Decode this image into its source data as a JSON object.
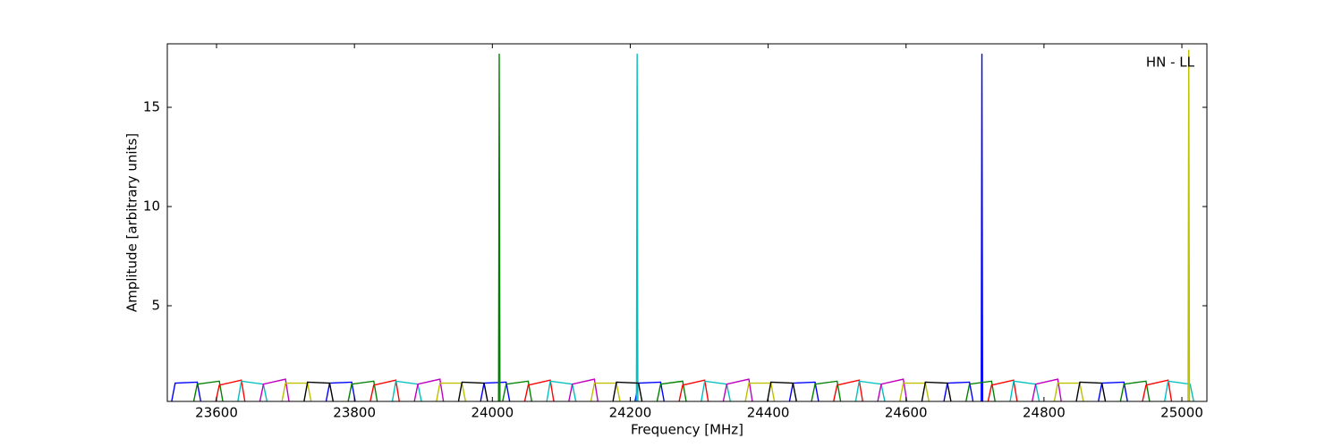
{
  "chart_data": {
    "type": "line",
    "annotation": "HN - LL",
    "xlabel": "Frequency [MHz]",
    "ylabel": "Amplitude [arbitrary units]",
    "xlim": [
      23528.6,
      25036.3
    ],
    "ylim": [
      0.18,
      18.2
    ],
    "xticks": [
      23600,
      23800,
      24000,
      24200,
      24400,
      24600,
      24800,
      25000
    ],
    "yticks": [
      5,
      10,
      15
    ],
    "series": [
      {
        "color": "#0000ff",
        "x": [
          23535,
          23540,
          23572,
          23577,
          null,
          23759,
          23764,
          23796,
          23801,
          null,
          23983,
          23988,
          24020,
          24025,
          null,
          24207,
          24212,
          24244,
          24249,
          null,
          24431,
          24436,
          24468,
          24473,
          null,
          24655,
          24660,
          24692,
          24697,
          null,
          24709,
          24710,
          24711,
          null,
          24879,
          24884,
          24916,
          24921
        ],
        "values": [
          0.2,
          1.1,
          1.15,
          0.2,
          null,
          0.2,
          1.1,
          1.15,
          0.2,
          null,
          0.2,
          1.1,
          1.15,
          0.2,
          null,
          0.2,
          1.1,
          1.15,
          0.2,
          null,
          0.2,
          1.1,
          1.15,
          0.2,
          null,
          0.2,
          1.1,
          1.15,
          0.2,
          null,
          0.2,
          17.7,
          0.2,
          null,
          0.2,
          1.1,
          1.15,
          0.2
        ]
      },
      {
        "color": "#008000",
        "x": [
          23567,
          23572,
          23604,
          23609,
          null,
          23791,
          23796,
          23828,
          23833,
          null,
          24009,
          24010,
          24011,
          null,
          24015,
          24020,
          24052,
          24057,
          null,
          24239,
          24244,
          24276,
          24281,
          null,
          24463,
          24468,
          24500,
          24505,
          null,
          24687,
          24692,
          24724,
          24729,
          null,
          24911,
          24916,
          24948,
          24953
        ],
        "values": [
          0.2,
          1.05,
          1.2,
          0.2,
          null,
          0.2,
          1.05,
          1.2,
          0.2,
          null,
          0.2,
          17.7,
          0.2,
          null,
          0.2,
          1.05,
          1.2,
          0.2,
          null,
          0.2,
          1.05,
          1.2,
          0.2,
          null,
          0.2,
          1.05,
          1.2,
          0.2,
          null,
          0.2,
          1.05,
          1.2,
          0.2,
          null,
          0.2,
          1.05,
          1.2,
          0.2
        ]
      },
      {
        "color": "#ff0000",
        "x": [
          23599,
          23604,
          23636,
          23641,
          null,
          23823,
          23828,
          23860,
          23865,
          null,
          24047,
          24052,
          24084,
          24089,
          null,
          24271,
          24276,
          24308,
          24313,
          null,
          24495,
          24500,
          24532,
          24537,
          null,
          24719,
          24724,
          24756,
          24761,
          null,
          24943,
          24948,
          24980,
          24985
        ],
        "values": [
          0.2,
          1.0,
          1.25,
          0.2,
          null,
          0.2,
          1.0,
          1.25,
          0.2,
          null,
          0.2,
          1.0,
          1.25,
          0.2,
          null,
          0.2,
          1.0,
          1.25,
          0.2,
          null,
          0.2,
          1.0,
          1.25,
          0.2,
          null,
          0.2,
          1.0,
          1.25,
          0.2,
          null,
          0.2,
          1.0,
          1.25,
          0.2
        ]
      },
      {
        "color": "#00bfbf",
        "x": [
          23631,
          23636,
          23668,
          23673,
          null,
          23855,
          23860,
          23892,
          23897,
          null,
          24079,
          24084,
          24116,
          24121,
          null,
          24209,
          24210,
          24211,
          null,
          24303,
          24308,
          24340,
          24345,
          null,
          24527,
          24532,
          24564,
          24569,
          null,
          24751,
          24756,
          24788,
          24793,
          null,
          24975,
          24980,
          25012,
          25017
        ],
        "values": [
          0.2,
          1.2,
          1.05,
          0.2,
          null,
          0.2,
          1.2,
          1.05,
          0.2,
          null,
          0.2,
          1.2,
          1.05,
          0.2,
          null,
          0.2,
          17.7,
          0.2,
          null,
          0.2,
          1.2,
          1.05,
          0.2,
          null,
          0.2,
          1.2,
          1.05,
          0.2,
          null,
          0.2,
          1.2,
          1.05,
          0.2,
          null,
          0.2,
          1.2,
          1.05,
          0.2
        ]
      },
      {
        "color": "#bf00bf",
        "x": [
          23663,
          23668,
          23700,
          23705,
          null,
          23887,
          23892,
          23924,
          23929,
          null,
          24111,
          24116,
          24148,
          24153,
          null,
          24335,
          24340,
          24372,
          24377,
          null,
          24559,
          24564,
          24596,
          24601,
          null,
          24783,
          24788,
          24820,
          24825
        ],
        "values": [
          0.2,
          1.05,
          1.3,
          0.2,
          null,
          0.2,
          1.05,
          1.3,
          0.2,
          null,
          0.2,
          1.05,
          1.3,
          0.2,
          null,
          0.2,
          1.05,
          1.3,
          0.2,
          null,
          0.2,
          1.05,
          1.3,
          0.2,
          null,
          0.2,
          1.05,
          1.3,
          0.2
        ]
      },
      {
        "color": "#bfbf00",
        "x": [
          23695,
          23700,
          23732,
          23737,
          null,
          23919,
          23924,
          23956,
          23961,
          null,
          24143,
          24148,
          24180,
          24185,
          null,
          24367,
          24372,
          24404,
          24409,
          null,
          24591,
          24596,
          24628,
          24633,
          null,
          24815,
          24820,
          24852,
          24857,
          null,
          25009,
          25010,
          25011
        ],
        "values": [
          0.2,
          1.1,
          1.1,
          0.2,
          null,
          0.2,
          1.1,
          1.1,
          0.2,
          null,
          0.2,
          1.1,
          1.1,
          0.2,
          null,
          0.2,
          1.1,
          1.1,
          0.2,
          null,
          0.2,
          1.1,
          1.1,
          0.2,
          null,
          0.2,
          1.1,
          1.1,
          0.2,
          null,
          0.2,
          17.9,
          0.2
        ]
      },
      {
        "color": "#000000",
        "x": [
          23727,
          23732,
          23764,
          23769,
          null,
          23951,
          23956,
          23988,
          23993,
          null,
          24175,
          24180,
          24212,
          24217,
          null,
          24399,
          24404,
          24436,
          24441,
          null,
          24623,
          24628,
          24660,
          24665,
          null,
          24847,
          24852,
          24884,
          24889
        ],
        "values": [
          0.2,
          1.15,
          1.1,
          0.2,
          null,
          0.2,
          1.15,
          1.1,
          0.2,
          null,
          0.2,
          1.15,
          1.1,
          0.2,
          null,
          0.2,
          1.15,
          1.1,
          0.2,
          null,
          0.2,
          1.15,
          1.1,
          0.2,
          null,
          0.2,
          1.15,
          1.1,
          0.2
        ]
      }
    ]
  }
}
